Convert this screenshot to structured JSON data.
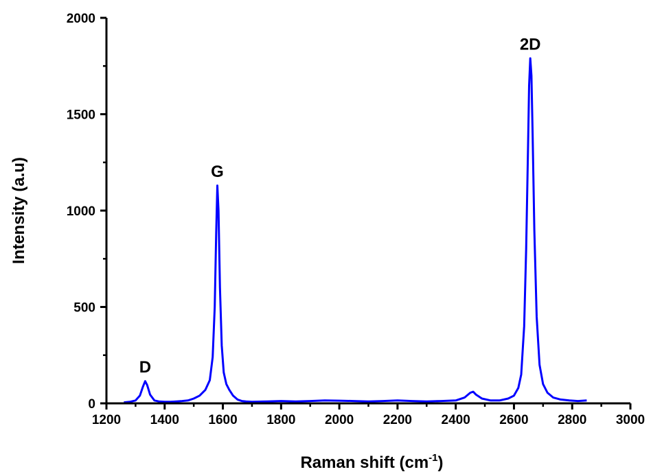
{
  "chart_data": {
    "type": "line",
    "xlabel": "Raman shift (cm",
    "xlabel_sup": "-1",
    "xlabel_close": ")",
    "ylabel": "Intensity (a.u)",
    "xlim": [
      1200,
      3000
    ],
    "ylim": [
      0,
      2000
    ],
    "x_ticks": [
      1200,
      1400,
      1600,
      1800,
      2000,
      2200,
      2400,
      2600,
      2800,
      3000
    ],
    "x_tick_labels": [
      "1200",
      "1400",
      "1600",
      "1800",
      "2000",
      "2200",
      "2400",
      "2600",
      "2800",
      "3000"
    ],
    "y_ticks": [
      0,
      500,
      1000,
      1500,
      2000
    ],
    "y_tick_labels": [
      "0",
      "500",
      "1000",
      "1500",
      "2000"
    ],
    "grid": false,
    "series": [
      {
        "color": "#0000ff",
        "x": [
          1260,
          1280,
          1300,
          1315,
          1325,
          1333,
          1340,
          1350,
          1365,
          1380,
          1400,
          1420,
          1440,
          1460,
          1480,
          1500,
          1520,
          1540,
          1555,
          1565,
          1572,
          1577,
          1581,
          1585,
          1590,
          1596,
          1603,
          1612,
          1622,
          1635,
          1650,
          1665,
          1680,
          1700,
          1750,
          1800,
          1850,
          1900,
          1950,
          2000,
          2050,
          2100,
          2150,
          2200,
          2250,
          2300,
          2350,
          2400,
          2430,
          2450,
          2460,
          2470,
          2490,
          2520,
          2550,
          2580,
          2600,
          2615,
          2625,
          2635,
          2642,
          2648,
          2652,
          2656,
          2660,
          2664,
          2670,
          2678,
          2688,
          2700,
          2715,
          2735,
          2760,
          2790,
          2820,
          2850
        ],
        "y": [
          5,
          8,
          15,
          40,
          85,
          115,
          95,
          45,
          15,
          10,
          8,
          8,
          10,
          12,
          15,
          25,
          40,
          70,
          120,
          240,
          500,
          880,
          1130,
          1000,
          600,
          300,
          160,
          100,
          70,
          40,
          20,
          12,
          10,
          8,
          10,
          12,
          10,
          12,
          15,
          14,
          12,
          10,
          12,
          15,
          12,
          10,
          12,
          15,
          30,
          55,
          60,
          45,
          25,
          15,
          15,
          25,
          40,
          80,
          150,
          400,
          800,
          1300,
          1650,
          1790,
          1700,
          1400,
          900,
          450,
          200,
          100,
          55,
          30,
          20,
          15,
          12,
          15
        ]
      }
    ],
    "annotations": [
      {
        "text": "D",
        "x": 1333,
        "y": 160
      },
      {
        "text": "G",
        "x": 1581,
        "y": 1175
      },
      {
        "text": "2D",
        "x": 2656,
        "y": 1835
      }
    ]
  }
}
